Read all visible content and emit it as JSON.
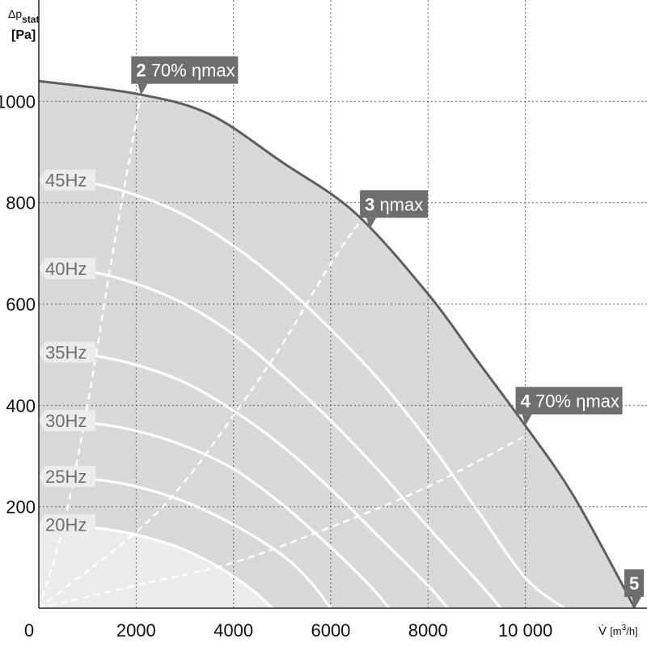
{
  "chart_data": {
    "type": "line",
    "ylabel_sym": "Δp",
    "ylabel_sub": "stat",
    "ylabel_unit": "[Pa]",
    "xlabel_sym": "V̇",
    "xlabel_unit": "[m",
    "xlabel_sup": "3",
    "xlabel_unit_end": "/h]",
    "origin_label": "0",
    "xlim": [
      0,
      12500
    ],
    "ylim": [
      0,
      1200
    ],
    "grid": true,
    "x_ticks": [
      {
        "value": 2000,
        "label": "2000"
      },
      {
        "value": 4000,
        "label": "4000"
      },
      {
        "value": 6000,
        "label": "6000"
      },
      {
        "value": 8000,
        "label": "8000"
      },
      {
        "value": 10000,
        "label": "10 000"
      }
    ],
    "y_ticks": [
      {
        "value": 200,
        "label": "200"
      },
      {
        "value": 400,
        "label": "400"
      },
      {
        "value": 600,
        "label": "600"
      },
      {
        "value": 800,
        "label": "800"
      },
      {
        "value": 1000,
        "label": "1000"
      }
    ],
    "envelope": {
      "x": [
        0,
        2000,
        3500,
        5000,
        6500,
        8000,
        9000,
        10000,
        11000,
        12250
      ],
      "y": [
        1040,
        1015,
        975,
        880,
        780,
        620,
        490,
        360,
        220,
        0
      ]
    },
    "speed_curves": [
      {
        "label": "45Hz",
        "x": [
          0,
          1000,
          2000,
          3000,
          4000,
          5000,
          6000,
          7000,
          8000,
          9000,
          10000,
          10800
        ],
        "y": [
          845,
          840,
          815,
          775,
          715,
          640,
          550,
          450,
          330,
          195,
          60,
          0
        ]
      },
      {
        "label": "40Hz",
        "x": [
          0,
          1000,
          2000,
          3000,
          4000,
          5000,
          6000,
          7000,
          8000,
          9000,
          9500
        ],
        "y": [
          670,
          665,
          640,
          600,
          540,
          460,
          370,
          270,
          160,
          55,
          0
        ]
      },
      {
        "label": "35Hz",
        "x": [
          0,
          1000,
          2000,
          3000,
          4000,
          5000,
          6000,
          7000,
          8000,
          8400
        ],
        "y": [
          505,
          500,
          480,
          445,
          390,
          320,
          235,
          140,
          45,
          0
        ]
      },
      {
        "label": "30Hz",
        "x": [
          0,
          1000,
          2000,
          3000,
          4000,
          5000,
          6000,
          6800,
          7200
        ],
        "y": [
          370,
          366,
          350,
          320,
          275,
          205,
          120,
          45,
          0
        ]
      },
      {
        "label": "25Hz",
        "x": [
          0,
          1000,
          2000,
          3000,
          4000,
          5000,
          5600,
          6000
        ],
        "y": [
          260,
          256,
          240,
          210,
          165,
          105,
          50,
          0
        ]
      },
      {
        "label": "20Hz",
        "x": [
          0,
          1000,
          2000,
          3000,
          3800,
          4400,
          4800
        ],
        "y": [
          165,
          160,
          145,
          115,
          75,
          35,
          0
        ]
      }
    ],
    "efficiency_lines": [
      {
        "name": "2",
        "x": [
          0,
          500,
          1000,
          1500,
          2000,
          2100
        ],
        "y": [
          0,
          160,
          400,
          690,
          960,
          1020
        ]
      },
      {
        "name": "3",
        "x": [
          0,
          2000,
          3000,
          4000,
          5000,
          6000,
          6800
        ],
        "y": [
          0,
          150,
          250,
          380,
          520,
          680,
          790
        ]
      },
      {
        "name": "4",
        "x": [
          0,
          2000,
          4000,
          6000,
          8000,
          10000
        ],
        "y": [
          0,
          45,
          90,
          160,
          240,
          340
        ]
      }
    ],
    "callouts": [
      {
        "num": "2",
        "text": " 70% ηmax"
      },
      {
        "num": "3",
        "text": " ηmax"
      },
      {
        "num": "4",
        "text": " 70% ηmax"
      },
      {
        "num": "5",
        "text": ""
      }
    ],
    "colors": {
      "background": "#ffffff",
      "operating_area": "#d9d9d9",
      "low_area": "#ececec",
      "envelope": "#5f5f5f",
      "curve": "#ffffff",
      "label_bg": "#ececec",
      "callout_bg": "#6e6e6e",
      "grid": "#444444"
    }
  }
}
